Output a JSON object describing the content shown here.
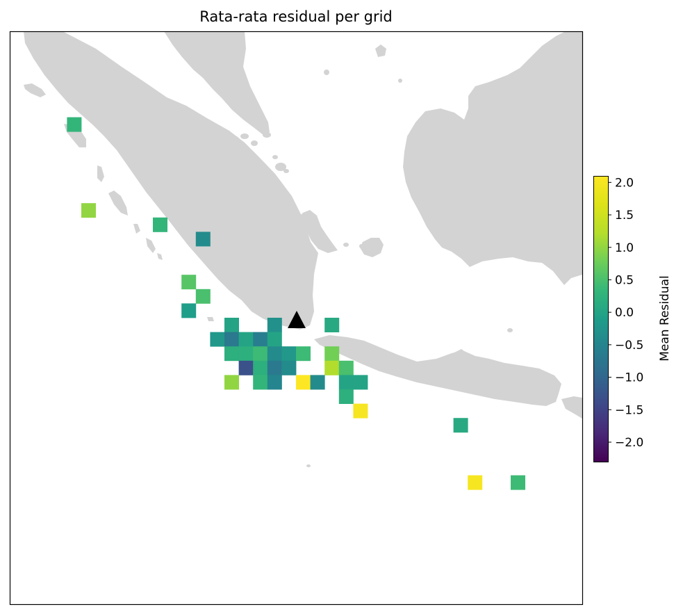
{
  "title": "Rata-rata residual per grid",
  "map": {
    "land_color": "#d3d3d3",
    "ocean_color": "#ffffff",
    "station_marker": "black-triangle"
  },
  "colorbar": {
    "label": "Mean Residual",
    "colormap": "viridis",
    "vmin": -2.3,
    "vmax": 2.1,
    "ticks": [
      "−2.0",
      "−1.5",
      "−1.0",
      "−0.5",
      "0.0",
      "0.5",
      "1.0",
      "1.5",
      "2.0"
    ],
    "tick_values": [
      -2.0,
      -1.5,
      -1.0,
      -0.5,
      0.0,
      0.5,
      1.0,
      1.5,
      2.0
    ]
  },
  "chart_data": {
    "type": "heatmap",
    "title": "Rata-rata residual per grid",
    "value_label": "Mean Residual",
    "grid_cells": [
      {
        "col": 4,
        "row": 6,
        "value": 0.3
      },
      {
        "col": 5,
        "row": 12,
        "value": 1.0
      },
      {
        "col": 10,
        "row": 13,
        "value": 0.3
      },
      {
        "col": 13,
        "row": 14,
        "value": -0.4
      },
      {
        "col": 12,
        "row": 17,
        "value": 0.6
      },
      {
        "col": 13,
        "row": 18,
        "value": 0.5
      },
      {
        "col": 12,
        "row": 19,
        "value": -0.1
      },
      {
        "col": 15,
        "row": 20,
        "value": 0.0
      },
      {
        "col": 18,
        "row": 20,
        "value": -0.3
      },
      {
        "col": 22,
        "row": 20,
        "value": 0.1
      },
      {
        "col": 14,
        "row": 21,
        "value": -0.2
      },
      {
        "col": 15,
        "row": 21,
        "value": -0.7
      },
      {
        "col": 16,
        "row": 21,
        "value": 0.0
      },
      {
        "col": 17,
        "row": 21,
        "value": -0.6
      },
      {
        "col": 18,
        "row": 21,
        "value": 0.0
      },
      {
        "col": 15,
        "row": 22,
        "value": 0.2
      },
      {
        "col": 16,
        "row": 22,
        "value": 0.2
      },
      {
        "col": 17,
        "row": 22,
        "value": 0.4
      },
      {
        "col": 18,
        "row": 22,
        "value": -0.4
      },
      {
        "col": 19,
        "row": 22,
        "value": -0.2
      },
      {
        "col": 20,
        "row": 22,
        "value": 0.4
      },
      {
        "col": 22,
        "row": 22,
        "value": 0.8
      },
      {
        "col": 16,
        "row": 23,
        "value": -1.3
      },
      {
        "col": 17,
        "row": 23,
        "value": 0.2
      },
      {
        "col": 18,
        "row": 23,
        "value": -0.7
      },
      {
        "col": 19,
        "row": 23,
        "value": -0.4
      },
      {
        "col": 22,
        "row": 23,
        "value": 1.2
      },
      {
        "col": 23,
        "row": 23,
        "value": 0.5
      },
      {
        "col": 15,
        "row": 24,
        "value": 1.0
      },
      {
        "col": 17,
        "row": 24,
        "value": 0.3
      },
      {
        "col": 18,
        "row": 24,
        "value": -0.5
      },
      {
        "col": 20,
        "row": 24,
        "value": 2.1
      },
      {
        "col": 21,
        "row": 24,
        "value": -0.4
      },
      {
        "col": 23,
        "row": 24,
        "value": 0.0
      },
      {
        "col": 24,
        "row": 24,
        "value": 0.0
      },
      {
        "col": 23,
        "row": 25,
        "value": 0.2
      },
      {
        "col": 24,
        "row": 26,
        "value": 2.0
      },
      {
        "col": 31,
        "row": 27,
        "value": 0.1
      },
      {
        "col": 32,
        "row": 31,
        "value": 2.0
      },
      {
        "col": 35,
        "row": 31,
        "value": 0.4
      }
    ]
  }
}
